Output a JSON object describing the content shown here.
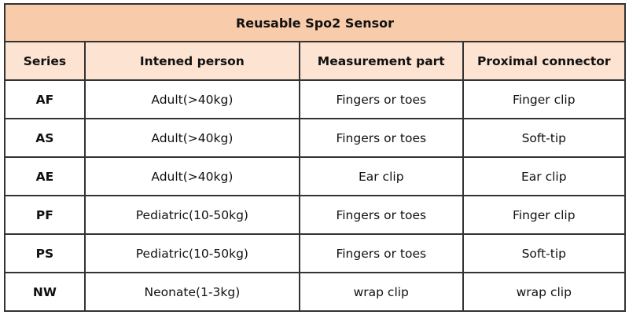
{
  "title": "Reusable Spo2 Sensor",
  "headers": [
    "Series",
    "Intened person",
    "Measurement part",
    "Proximal connector"
  ],
  "rows": [
    [
      "AF",
      "Adult(>40kg)",
      "Fingers or toes",
      "Finger clip"
    ],
    [
      "AS",
      "Adult(>40kg)",
      "Fingers or toes",
      "Soft-tip"
    ],
    [
      "AE",
      "Adult(>40kg)",
      "Ear clip",
      "Ear clip"
    ],
    [
      "PF",
      "Pediatric(10-50kg)",
      "Fingers or toes",
      "Finger clip"
    ],
    [
      "PS",
      "Pediatric(10-50kg)",
      "Fingers or toes",
      "Soft-tip"
    ],
    [
      "NW",
      "Neonate(1-3kg)",
      "wrap clip",
      "wrap clip"
    ]
  ],
  "colors": {
    "title_bg": "#f8cbaa",
    "header_bg": "#fce3d2"
  }
}
